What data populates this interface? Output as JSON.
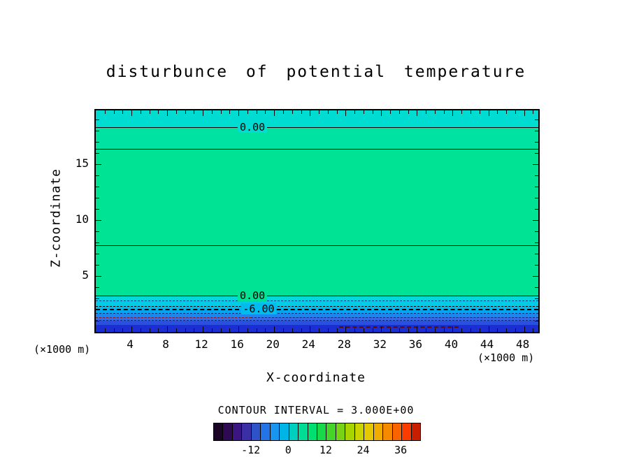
{
  "title": "disturbunce of potential temperature",
  "axes": {
    "x_label": "X-coordinate",
    "y_label": "Z-coordinate",
    "x_unit": "(×1000 m)",
    "y_unit": "(×1000 m)",
    "x_tick_labels": [
      "4",
      "8",
      "12",
      "16",
      "20",
      "24",
      "28",
      "32",
      "36",
      "40",
      "44",
      "48"
    ],
    "y_tick_labels": [
      "5",
      "10",
      "15"
    ]
  },
  "contour": {
    "interval_text": "CONTOUR INTERVAL = 3.000E+00",
    "labels": [
      "0.00",
      "0.00",
      "-6.00"
    ]
  },
  "colorbar": {
    "tick_labels": [
      "-12",
      "0",
      "12",
      "24",
      "36"
    ]
  },
  "chart_data": {
    "type": "heatmap",
    "subtype": "filled-contour-cross-section",
    "title": "disturbunce of potential temperature",
    "xlabel": "X-coordinate",
    "ylabel": "Z-coordinate",
    "units": "×1000 m",
    "x_range": [
      0,
      49.6
    ],
    "z_range": [
      0,
      19.8
    ],
    "x_major_ticks": [
      4,
      8,
      12,
      16,
      20,
      24,
      28,
      32,
      36,
      40,
      44,
      48
    ],
    "x_minor_step": 1,
    "z_major_ticks": [
      5,
      10,
      15
    ],
    "z_minor_step": 1,
    "contour_interval": 3.0,
    "bands": [
      {
        "z_from": 18.25,
        "z_to": 19.8,
        "value": "-3 to 0",
        "color": "#00DCD2"
      },
      {
        "z_from": 16.31,
        "z_to": 18.25,
        "value": "0 to 3",
        "color": "#00E2A2"
      },
      {
        "z_from": 3.19,
        "z_to": 16.31,
        "value": "0 to 3",
        "color": "#00E294"
      },
      {
        "z_from": 2.75,
        "z_to": 3.19,
        "value": "-3 to 0",
        "color": "#00D8DA"
      },
      {
        "z_from": 2.31,
        "z_to": 2.75,
        "value": "-3 to 0",
        "color": "#00CCE6"
      },
      {
        "z_from": 2.0,
        "z_to": 2.31,
        "value": "-6 to -3",
        "color": "#00BCEE"
      },
      {
        "z_from": 1.63,
        "z_to": 2.0,
        "value": "-6 to -3",
        "color": "#00A6F2"
      },
      {
        "z_from": 1.31,
        "z_to": 1.63,
        "value": "-9 to -6",
        "color": "#1C86F0"
      },
      {
        "z_from": 1.0,
        "z_to": 1.31,
        "value": "-9 to -6",
        "color": "#2F6BEB"
      },
      {
        "z_from": 0.63,
        "z_to": 1.0,
        "value": "-12 to -9",
        "color": "#2B50E0"
      },
      {
        "z_from": 0,
        "z_to": 0.63,
        "value": "-15 to -12",
        "color": "#1B2ED2"
      }
    ],
    "lines": [
      {
        "z": 18.25,
        "style": "solid",
        "width": 1,
        "color": "#000000",
        "label": "0.00",
        "label_x": 0.354,
        "label_bg": "#00DCD2"
      },
      {
        "z": 16.31,
        "style": "solid",
        "width": 1,
        "color": "#000000"
      },
      {
        "z": 7.69,
        "style": "solid",
        "width": 1,
        "color": "#000000"
      },
      {
        "z": 3.19,
        "style": "solid",
        "width": 1,
        "color": "#000000",
        "label": "0.00",
        "label_x": 0.354,
        "label_bg": "#00E294"
      },
      {
        "z": 2.75,
        "style": "dashed",
        "width": 1,
        "color": "#003C9C"
      },
      {
        "z": 2.31,
        "style": "dashed",
        "width": 1,
        "color": "#000000"
      },
      {
        "z": 2.0,
        "style": "dashed",
        "width": 2,
        "color": "#000000",
        "label": "-6.00",
        "label_x": 0.368,
        "label_bg": "#00BCEE"
      },
      {
        "z": 1.63,
        "style": "dashed",
        "width": 1,
        "color": "#102880"
      },
      {
        "z": 1.31,
        "style": "dashed",
        "width": 1,
        "color": "#8B1A1A",
        "x_start": 0.0,
        "x_end": 0.35
      },
      {
        "z": 1.31,
        "style": "dashed",
        "width": 1,
        "color": "#102880",
        "x_start": 0.35,
        "x_end": 1.0
      },
      {
        "z": 1.0,
        "style": "dashed",
        "width": 1,
        "color": "#102880"
      },
      {
        "z": 0.44,
        "style": "dashed",
        "width": 2,
        "color": "#5A0A0A",
        "x_start": 0.55,
        "x_end": 0.82
      }
    ],
    "colorbar": {
      "min": -24,
      "max": 42,
      "interval": 3,
      "tick_values": [
        -12,
        0,
        12,
        24,
        36
      ],
      "cell_colors": [
        "#1A0526",
        "#2E0A52",
        "#3C1582",
        "#3A2FA5",
        "#2E52C8",
        "#2374E6",
        "#1895F0",
        "#00B4E6",
        "#00CFC0",
        "#00DC96",
        "#00E070",
        "#18D948",
        "#46D32A",
        "#78D215",
        "#A8D400",
        "#CCD400",
        "#E6C800",
        "#F0AC00",
        "#F58A00",
        "#F96400",
        "#FB3C00",
        "#C81E00"
      ]
    }
  }
}
